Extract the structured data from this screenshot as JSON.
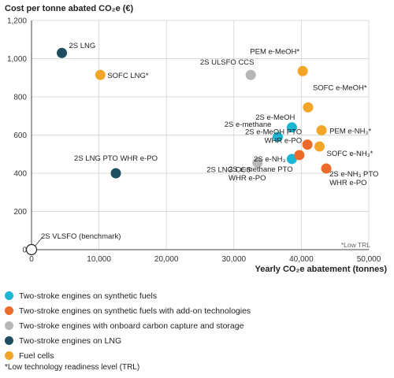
{
  "chart_data": {
    "type": "scatter",
    "ylabel": "Cost per tonne abated CO₂e (€)",
    "xlabel": "Yearly CO₂e abatement (tonnes)",
    "xlim": [
      0,
      50000
    ],
    "ylim": [
      0,
      1200
    ],
    "xticks": [
      0,
      10000,
      20000,
      30000,
      40000,
      50000
    ],
    "xtick_labels": [
      "0",
      "10,000",
      "20,000",
      "30,000",
      "40,000",
      "50,000"
    ],
    "yticks": [
      0,
      200,
      400,
      600,
      800,
      1000,
      1200
    ],
    "ytick_labels": [
      "0",
      "200",
      "400",
      "600",
      "800",
      "1,000",
      "1,200"
    ],
    "grid": true,
    "note": "*Low TRL",
    "categories": [
      {
        "key": "synthetic",
        "label": "Two-stroke engines on synthetic fuels",
        "color": "#1bb6d3"
      },
      {
        "key": "addon",
        "label": "Two-stroke engines on synthetic fuels with add-on technologies",
        "color": "#ec6a2c"
      },
      {
        "key": "ccs",
        "label": "Two-stroke engines with onboard carbon capture and storage",
        "color": "#b7b7b7"
      },
      {
        "key": "lng",
        "label": "Two-stroke engines on LNG",
        "color": "#1f4e63"
      },
      {
        "key": "fuelcell",
        "label": "Fuel cells",
        "color": "#f2a627"
      }
    ],
    "points": [
      {
        "label": "2S LNG",
        "x": 4500,
        "y": 1030,
        "category": "lng"
      },
      {
        "label": "SOFC LNG*",
        "x": 10200,
        "y": 915,
        "category": "fuelcell"
      },
      {
        "label": "2S ULSFO CCS",
        "x": 32500,
        "y": 915,
        "category": "ccs"
      },
      {
        "label": "PEM e-MeOH*",
        "x": 40200,
        "y": 935,
        "category": "fuelcell"
      },
      {
        "label": "SOFC e-MeOH*",
        "x": 41000,
        "y": 745,
        "category": "fuelcell"
      },
      {
        "label": "2S e-MeOH",
        "x": 38600,
        "y": 640,
        "category": "synthetic"
      },
      {
        "label": "PEM e-NH₃*",
        "x": 43000,
        "y": 625,
        "category": "fuelcell"
      },
      {
        "label": "2S e-methane",
        "x": 36500,
        "y": 590,
        "category": "synthetic"
      },
      {
        "label": "2S e-MeOH PTO WHR e-PO",
        "x": 40900,
        "y": 550,
        "category": "addon"
      },
      {
        "label": "SOFC e-NH₃*",
        "x": 42700,
        "y": 540,
        "category": "fuelcell"
      },
      {
        "label": "2S LNG PTO WHR e-PO",
        "x": 12500,
        "y": 400,
        "category": "lng"
      },
      {
        "label": "2S LNG CCS",
        "x": 33500,
        "y": 455,
        "category": "ccs"
      },
      {
        "label": "2S e-NH₃",
        "x": 38600,
        "y": 475,
        "category": "synthetic"
      },
      {
        "label": "2S e-methane PTO WHR e-PO",
        "x": 39700,
        "y": 495,
        "category": "addon"
      },
      {
        "label": "2S e-NH₃ PTO WHR e-PO",
        "x": 43700,
        "y": 425,
        "category": "addon"
      },
      {
        "label": "2S VLSFO (benchmark)",
        "x": 0,
        "y": 0,
        "category": "benchmark"
      }
    ]
  },
  "footnote": "*Low technology readiness level (TRL)"
}
